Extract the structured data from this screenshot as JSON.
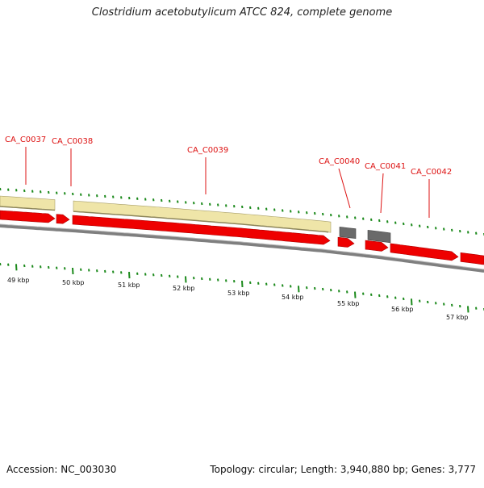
{
  "title": "Clostridium acetobutylicum ATCC 824, complete genome",
  "footer": {
    "accession": "Accession: NC_003030",
    "summary": "Topology: circular; Length: 3,940,880 bp; Genes: 3,777"
  },
  "colors": {
    "gene_forward": "#ee0000",
    "cds_feature": "#efe5a8",
    "gene_gray": "#6a6a6a",
    "backbone": "#7f7f7f",
    "ticks": "#1c8a1c",
    "label": "#dd1111"
  },
  "gene_labels": [
    "CA_C0037",
    "CA_C0038",
    "CA_C0039",
    "CA_C0040",
    "CA_C0041",
    "CA_C0042"
  ],
  "scale_labels": [
    "49 kbp",
    "50 kbp",
    "51 kbp",
    "52 kbp",
    "53 kbp",
    "54 kbp",
    "55 kbp",
    "56 kbp",
    "57 kbp"
  ]
}
